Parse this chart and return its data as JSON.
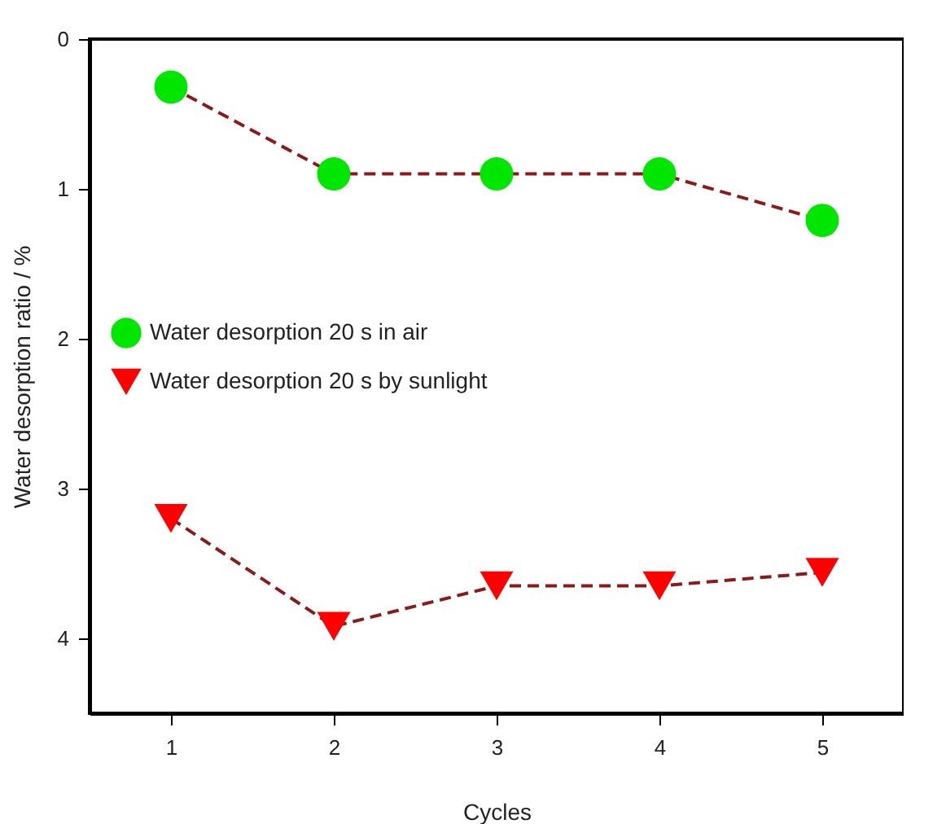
{
  "chart_data": {
    "type": "line",
    "xlabel": "Cycles",
    "ylabel": "Water desorption ratio / %",
    "x": [
      1,
      2,
      3,
      4,
      5
    ],
    "series": [
      {
        "name": "Water desorption 20 s in air",
        "color": "#00e600",
        "marker": "circle",
        "values": [
          0.32,
          0.9,
          0.9,
          0.9,
          1.21
        ]
      },
      {
        "name": "Water desorption 20 s by sunlight",
        "color": "#ff0000",
        "marker": "triangle",
        "values": [
          3.2,
          3.92,
          3.65,
          3.65,
          3.56
        ]
      }
    ],
    "xlim": [
      0.5,
      5.5
    ],
    "xticks": [
      1,
      2,
      3,
      4,
      5
    ],
    "ylim": [
      4.5,
      0
    ],
    "yticks": [
      0,
      1,
      2,
      3,
      4
    ],
    "line_style": "dashed",
    "grid": false,
    "legend": "left"
  }
}
